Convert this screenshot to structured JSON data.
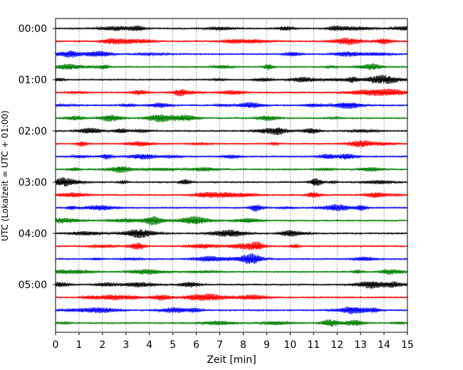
{
  "chart_data": {
    "type": "line",
    "xlabel": "Zeit  [min]",
    "ylabel": "UTC (Lokalzeit = UTC + 01:00)",
    "xlim": [
      0,
      15
    ],
    "xticks": [
      0,
      1,
      2,
      3,
      4,
      5,
      6,
      7,
      8,
      9,
      10,
      11,
      12,
      13,
      14,
      15
    ],
    "ytick_labels": [
      "00:00",
      "01:00",
      "02:00",
      "03:00",
      "04:00",
      "05:00"
    ],
    "grid": "vertical dotted at each minute",
    "trace_interval_minutes": 15,
    "trace_count": 24,
    "trace_colors": [
      "#000000",
      "#ff0000",
      "#0000ff",
      "#007f00"
    ],
    "series": [
      {
        "start": "00:00",
        "color": "#000000"
      },
      {
        "start": "00:15",
        "color": "#ff0000"
      },
      {
        "start": "00:30",
        "color": "#0000ff"
      },
      {
        "start": "00:45",
        "color": "#007f00"
      },
      {
        "start": "01:00",
        "color": "#000000"
      },
      {
        "start": "01:15",
        "color": "#ff0000"
      },
      {
        "start": "01:30",
        "color": "#0000ff"
      },
      {
        "start": "01:45",
        "color": "#007f00"
      },
      {
        "start": "02:00",
        "color": "#000000"
      },
      {
        "start": "02:15",
        "color": "#ff0000"
      },
      {
        "start": "02:30",
        "color": "#0000ff"
      },
      {
        "start": "02:45",
        "color": "#007f00"
      },
      {
        "start": "03:00",
        "color": "#000000"
      },
      {
        "start": "03:15",
        "color": "#ff0000"
      },
      {
        "start": "03:30",
        "color": "#0000ff"
      },
      {
        "start": "03:45",
        "color": "#007f00"
      },
      {
        "start": "04:00",
        "color": "#000000"
      },
      {
        "start": "04:15",
        "color": "#ff0000"
      },
      {
        "start": "04:30",
        "color": "#0000ff"
      },
      {
        "start": "04:45",
        "color": "#007f00"
      },
      {
        "start": "05:00",
        "color": "#000000"
      },
      {
        "start": "05:15",
        "color": "#ff0000"
      },
      {
        "start": "05:30",
        "color": "#0000ff"
      },
      {
        "start": "05:45",
        "color": "#007f00"
      }
    ]
  }
}
